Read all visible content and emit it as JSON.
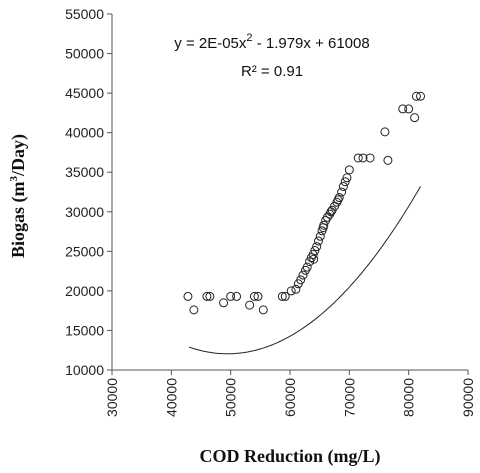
{
  "chart_data": {
    "type": "scatter",
    "xlabel": "COD Reduction (mg/L)",
    "ylabel_main": "Biogas (m",
    "ylabel_sup": "3",
    "ylabel_end": "/Day)",
    "xlim": [
      30000,
      90000
    ],
    "ylim": [
      10000,
      55000
    ],
    "xticks": [
      "30000",
      "40000",
      "50000",
      "60000",
      "70000",
      "80000",
      "90000"
    ],
    "yticks": [
      "10000",
      "15000",
      "20000",
      "25000",
      "30000",
      "35000",
      "40000",
      "45000",
      "50000",
      "55000"
    ],
    "grid": false,
    "trendline": {
      "type": "polynomial",
      "a": 2e-05,
      "b": -1.979,
      "c": 61008,
      "xmin": 43000,
      "xmax": 82000,
      "equation_main": "y = 2E-05x",
      "equation_sup": "2",
      "equation_end": " - 1.979x + 61008",
      "r2_text": "R² = 0.91"
    },
    "points": [
      [
        42800,
        19300
      ],
      [
        43800,
        17600
      ],
      [
        46000,
        19300
      ],
      [
        46500,
        19300
      ],
      [
        48800,
        18500
      ],
      [
        50000,
        19300
      ],
      [
        51000,
        19300
      ],
      [
        53200,
        18200
      ],
      [
        54000,
        19300
      ],
      [
        54600,
        19300
      ],
      [
        55500,
        17600
      ],
      [
        58700,
        19300
      ],
      [
        59200,
        19300
      ],
      [
        60200,
        20000
      ],
      [
        61000,
        20200
      ],
      [
        61400,
        20900
      ],
      [
        61800,
        21400
      ],
      [
        62200,
        22000
      ],
      [
        62600,
        22600
      ],
      [
        62900,
        23000
      ],
      [
        63300,
        23700
      ],
      [
        63600,
        24200
      ],
      [
        63900,
        24600
      ],
      [
        64200,
        25100
      ],
      [
        64500,
        25600
      ],
      [
        64800,
        26300
      ],
      [
        65100,
        26900
      ],
      [
        65400,
        27600
      ],
      [
        65700,
        28300
      ],
      [
        66000,
        28900
      ],
      [
        66300,
        29300
      ],
      [
        66700,
        29700
      ],
      [
        67100,
        30200
      ],
      [
        67500,
        30700
      ],
      [
        67900,
        31200
      ],
      [
        68300,
        31800
      ],
      [
        68700,
        32500
      ],
      [
        69000,
        33200
      ],
      [
        69300,
        33800
      ],
      [
        69600,
        34300
      ],
      [
        70000,
        35300
      ],
      [
        71500,
        36800
      ],
      [
        72300,
        36800
      ],
      [
        73500,
        36800
      ],
      [
        76000,
        40100
      ],
      [
        76500,
        36500
      ],
      [
        79000,
        43000
      ],
      [
        80000,
        43000
      ],
      [
        81000,
        41900
      ],
      [
        81300,
        44600
      ],
      [
        82000,
        44600
      ],
      [
        64000,
        24000
      ],
      [
        65600,
        28000
      ],
      [
        66900,
        30000
      ],
      [
        68100,
        31500
      ]
    ]
  }
}
